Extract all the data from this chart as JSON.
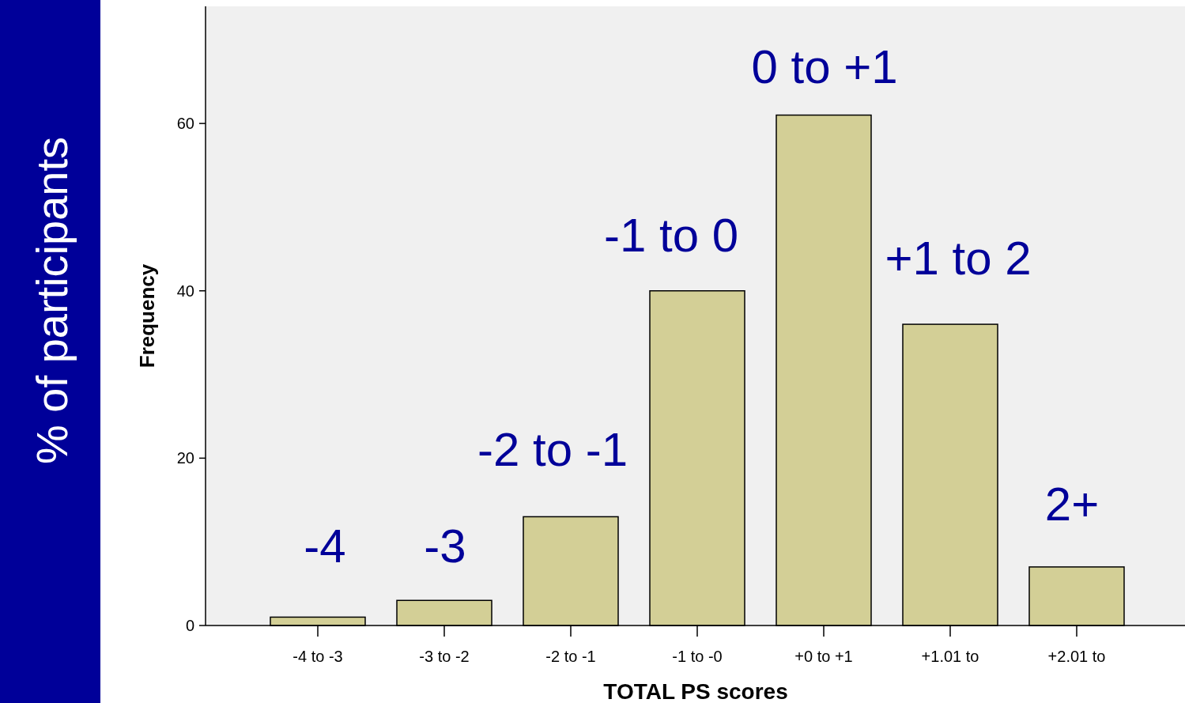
{
  "chart_data": {
    "type": "bar",
    "xlabel": "TOTAL PS scores",
    "ylabel": "Frequency",
    "categories": [
      "-4 to -3",
      "-3 to -2",
      "-2 to -1",
      "-1 to -0",
      "+0 to +1",
      "+1.01 to",
      "+2.01 to"
    ],
    "values": [
      1,
      3,
      13,
      40,
      61,
      36,
      7
    ],
    "color": "#d3cf96",
    "ylim": [
      0,
      74
    ],
    "yticks": [
      0,
      20,
      40,
      60
    ],
    "grid": false,
    "annotations": [
      "% of participants",
      "-4",
      "-3",
      "-2 to -1",
      "-1 to 0",
      "0 to +1",
      "+1 to 2",
      "2+"
    ]
  }
}
